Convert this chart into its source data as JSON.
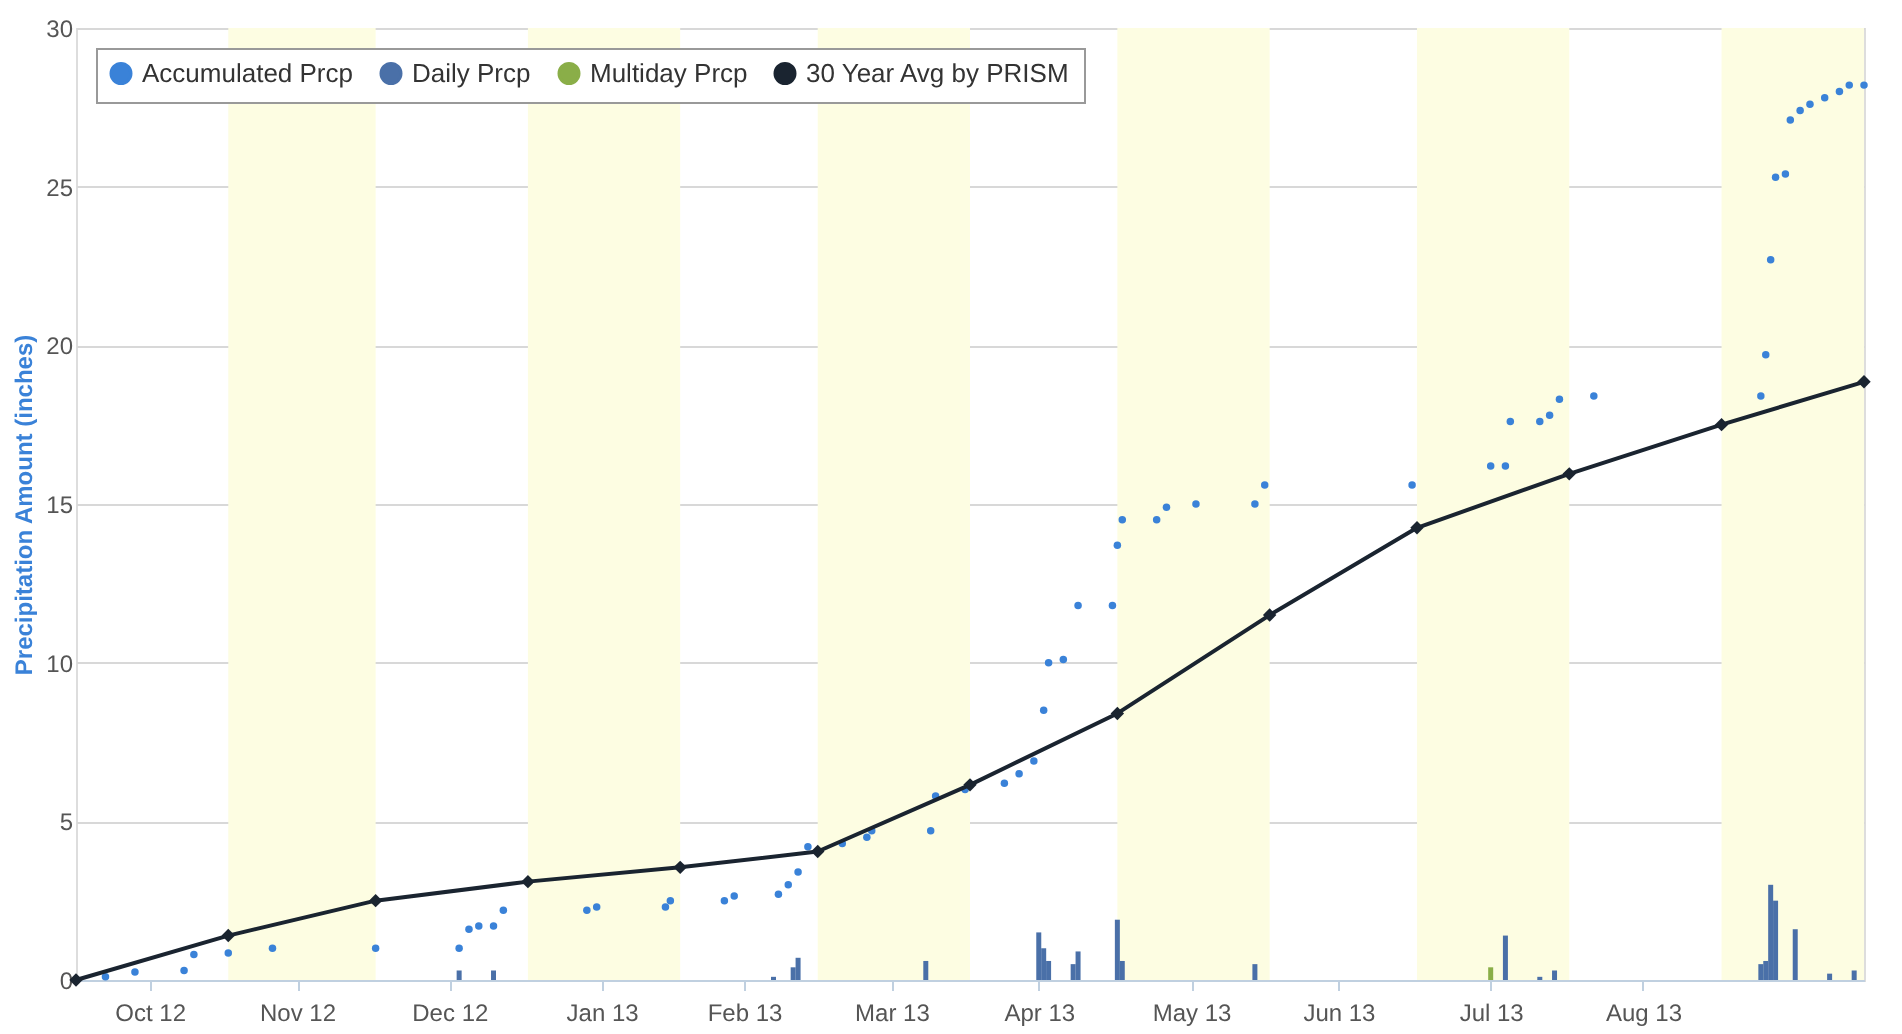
{
  "chart_data": {
    "type": "scatter",
    "ylabel": "Precipitation Amount (inches)",
    "xlim": [
      "2012-10-01",
      "2013-09-30"
    ],
    "xticks": [
      {
        "value": "2012-10-16",
        "label": "Oct 12"
      },
      {
        "value": "2012-11-15",
        "label": "Nov 12"
      },
      {
        "value": "2012-12-16",
        "label": "Dec 12"
      },
      {
        "value": "2013-01-16",
        "label": "Jan 13"
      },
      {
        "value": "2013-02-14",
        "label": "Feb 13"
      },
      {
        "value": "2013-03-16",
        "label": "Mar 13"
      },
      {
        "value": "2013-04-15",
        "label": "Apr 13"
      },
      {
        "value": "2013-05-16",
        "label": "May 13"
      },
      {
        "value": "2013-06-15",
        "label": "Jun 13"
      },
      {
        "value": "2013-07-16",
        "label": "Jul 13"
      },
      {
        "value": "2013-08-16",
        "label": "Aug 13"
      }
    ],
    "ylim": [
      0,
      30
    ],
    "yticks": [
      0,
      5,
      10,
      15,
      20,
      25,
      30
    ],
    "grid": "y",
    "legend": "top left",
    "bands": [
      {
        "axis": "x",
        "from": "2012-11-01",
        "to": "2012-12-01",
        "color": "#fdfde2"
      },
      {
        "axis": "x",
        "from": "2013-01-01",
        "to": "2013-02-01",
        "color": "#fdfde2"
      },
      {
        "axis": "x",
        "from": "2013-03-01",
        "to": "2013-04-01",
        "color": "#fdfde2"
      },
      {
        "axis": "x",
        "from": "2013-05-01",
        "to": "2013-06-01",
        "color": "#fdfde2"
      },
      {
        "axis": "x",
        "from": "2013-07-01",
        "to": "2013-08-01",
        "color": "#fdfde2"
      },
      {
        "axis": "x",
        "from": "2013-09-01",
        "to": "2013-09-30",
        "color": "#fdfde2"
      }
    ],
    "series": [
      {
        "name": "Accumulated Prcp",
        "marker": "circle",
        "color": "#3a82d8",
        "x": [
          "2012-10-07",
          "2012-10-13",
          "2012-10-23",
          "2012-10-25",
          "2012-11-01",
          "2012-11-10",
          "2012-12-01",
          "2012-12-18",
          "2012-12-20",
          "2012-12-22",
          "2012-12-25",
          "2012-12-27",
          "2013-01-13",
          "2013-01-15",
          "2013-01-29",
          "2013-01-30",
          "2013-02-10",
          "2013-02-12",
          "2013-02-21",
          "2013-02-23",
          "2013-02-25",
          "2013-02-27",
          "2013-03-06",
          "2013-03-11",
          "2013-03-12",
          "2013-03-24",
          "2013-03-25",
          "2013-03-31",
          "2013-04-08",
          "2013-04-11",
          "2013-04-14",
          "2013-04-16",
          "2013-04-17",
          "2013-04-20",
          "2013-04-23",
          "2013-04-30",
          "2013-05-01",
          "2013-05-02",
          "2013-05-09",
          "2013-05-11",
          "2013-05-17",
          "2013-05-29",
          "2013-05-31",
          "2013-06-30",
          "2013-07-16",
          "2013-07-19",
          "2013-07-20",
          "2013-07-26",
          "2013-07-28",
          "2013-07-30",
          "2013-08-06",
          "2013-09-09",
          "2013-09-10",
          "2013-09-11",
          "2013-09-12",
          "2013-09-14",
          "2013-09-15",
          "2013-09-17",
          "2013-09-19",
          "2013-09-22",
          "2013-09-25",
          "2013-09-27",
          "2013-09-30"
        ],
        "values": [
          0.1,
          0.25,
          0.3,
          0.8,
          0.85,
          1.0,
          1.0,
          1.0,
          1.6,
          1.7,
          1.7,
          2.2,
          2.2,
          2.3,
          2.3,
          2.5,
          2.5,
          2.65,
          2.7,
          3.0,
          3.4,
          4.2,
          4.3,
          4.5,
          4.7,
          4.7,
          5.8,
          6.0,
          6.2,
          6.5,
          6.9,
          8.5,
          10.0,
          10.1,
          11.8,
          11.8,
          13.7,
          14.5,
          14.5,
          14.9,
          15.0,
          15.0,
          15.6,
          15.6,
          16.2,
          16.2,
          17.6,
          17.6,
          17.8,
          18.3,
          18.4,
          18.4,
          19.7,
          22.7,
          25.3,
          25.4,
          27.1,
          27.4,
          27.6,
          27.8,
          28.0,
          28.2,
          28.2
        ]
      },
      {
        "name": "Daily Prcp",
        "type": "bar",
        "color": "#4a70a8",
        "x": [
          "2012-12-18",
          "2012-12-25",
          "2013-02-20",
          "2013-02-24",
          "2013-02-25",
          "2013-03-23",
          "2013-04-15",
          "2013-04-16",
          "2013-04-17",
          "2013-04-22",
          "2013-04-23",
          "2013-05-01",
          "2013-05-02",
          "2013-05-29",
          "2013-07-19",
          "2013-07-26",
          "2013-07-29",
          "2013-09-09",
          "2013-09-10",
          "2013-09-11",
          "2013-09-12",
          "2013-09-16",
          "2013-09-23",
          "2013-09-28"
        ],
        "values": [
          0.3,
          0.3,
          0.1,
          0.4,
          0.7,
          0.6,
          1.5,
          1.0,
          0.6,
          0.5,
          0.9,
          1.9,
          0.6,
          0.5,
          1.4,
          0.1,
          0.3,
          0.5,
          0.6,
          3.0,
          2.5,
          1.6,
          0.2,
          0.3
        ]
      },
      {
        "name": "Multiday Prcp",
        "type": "bar",
        "color": "#8aae48",
        "x": [
          "2013-07-16"
        ],
        "values": [
          0.4
        ]
      },
      {
        "name": "30 Year Avg by PRISM",
        "type": "line",
        "marker": "diamond",
        "color": "#1a2430",
        "x": [
          "2012-10-01",
          "2012-11-01",
          "2012-12-01",
          "2013-01-01",
          "2013-02-01",
          "2013-03-01",
          "2013-04-01",
          "2013-05-01",
          "2013-06-01",
          "2013-07-01",
          "2013-08-01",
          "2013-09-01",
          "2013-09-30"
        ],
        "values": [
          0,
          1.4,
          2.5,
          3.1,
          3.55,
          4.05,
          6.15,
          8.4,
          11.5,
          14.25,
          15.95,
          17.5,
          18.85
        ]
      }
    ]
  }
}
